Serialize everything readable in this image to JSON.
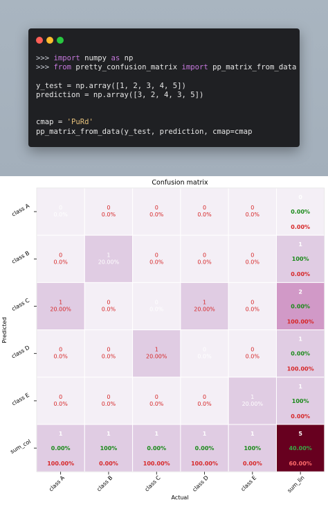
{
  "window": {
    "buttons": [
      "close",
      "minimize",
      "zoom"
    ]
  },
  "code_lines": [
    [
      {
        "t": ">>> ",
        "c": "prompt"
      },
      {
        "t": "import",
        "c": "kw"
      },
      {
        "t": " numpy ",
        "c": "plain"
      },
      {
        "t": "as",
        "c": "kw"
      },
      {
        "t": " np",
        "c": "plain"
      }
    ],
    [
      {
        "t": ">>> ",
        "c": "prompt"
      },
      {
        "t": "from",
        "c": "kw"
      },
      {
        "t": " pretty_confusion_matrix ",
        "c": "plain"
      },
      {
        "t": "import",
        "c": "kw"
      },
      {
        "t": " pp_matrix_from_data",
        "c": "plain"
      }
    ],
    [],
    [
      {
        "t": "y_test = np.array([1, 2, 3, 4, 5])",
        "c": "plain"
      }
    ],
    [
      {
        "t": "prediction = np.array([3, 2, 4, 3, 5])",
        "c": "plain"
      }
    ],
    [],
    [],
    [
      {
        "t": "cmap = ",
        "c": "plain"
      },
      {
        "t": "'PuRd'",
        "c": "str"
      }
    ],
    [
      {
        "t": "pp_matrix_from_data(y_test, prediction, cmap=cmap",
        "c": "plain"
      }
    ]
  ],
  "colors": {
    "count_text_dark": "#ffffff",
    "pct_text": "#d62728",
    "green_text": "#1a8a1a",
    "grid": "#ffffff"
  },
  "chart_data": {
    "type": "heatmap",
    "title": "Confusion matrix",
    "xlabel": "Actual",
    "ylabel": "Predicted",
    "columns": [
      "class A",
      "class B",
      "class C",
      "class D",
      "class E",
      "sum_lin"
    ],
    "rows": [
      "class A",
      "class B",
      "class C",
      "class D",
      "class E",
      "sum_col"
    ],
    "cells": [
      [
        {
          "count": "0",
          "pct": "0.0%",
          "fill": "#f4eff6",
          "style": "light"
        },
        {
          "count": "0",
          "pct": "0.0%",
          "fill": "#f4eff6",
          "style": "normal"
        },
        {
          "count": "0",
          "pct": "0.0%",
          "fill": "#f4eff6",
          "style": "normal"
        },
        {
          "count": "0",
          "pct": "0.0%",
          "fill": "#f4eff6",
          "style": "normal"
        },
        {
          "count": "0",
          "pct": "0.0%",
          "fill": "#f4eff6",
          "style": "normal"
        },
        {
          "count": "0",
          "green": "0.00%",
          "red": "0.00%",
          "fill": "#f4eff6",
          "style": "sum"
        }
      ],
      [
        {
          "count": "0",
          "pct": "0.0%",
          "fill": "#f4eff6",
          "style": "normal"
        },
        {
          "count": "1",
          "pct": "20.00%",
          "fill": "#e0cce3",
          "style": "light"
        },
        {
          "count": "0",
          "pct": "0.0%",
          "fill": "#f4eff6",
          "style": "normal"
        },
        {
          "count": "0",
          "pct": "0.0%",
          "fill": "#f4eff6",
          "style": "normal"
        },
        {
          "count": "0",
          "pct": "0.0%",
          "fill": "#f4eff6",
          "style": "normal"
        },
        {
          "count": "1",
          "green": "100%",
          "red": "0.00%",
          "fill": "#e0cce3",
          "style": "sum"
        }
      ],
      [
        {
          "count": "1",
          "pct": "20.00%",
          "fill": "#e0cce3",
          "style": "normal"
        },
        {
          "count": "0",
          "pct": "0.0%",
          "fill": "#f4eff6",
          "style": "normal"
        },
        {
          "count": "0",
          "pct": "0.0%",
          "fill": "#f4eff6",
          "style": "light"
        },
        {
          "count": "1",
          "pct": "20.00%",
          "fill": "#e0cce3",
          "style": "normal"
        },
        {
          "count": "0",
          "pct": "0.0%",
          "fill": "#f4eff6",
          "style": "normal"
        },
        {
          "count": "2",
          "green": "0.00%",
          "red": "100.00%",
          "fill": "#d199c7",
          "style": "sum"
        }
      ],
      [
        {
          "count": "0",
          "pct": "0.0%",
          "fill": "#f4eff6",
          "style": "normal"
        },
        {
          "count": "0",
          "pct": "0.0%",
          "fill": "#f4eff6",
          "style": "normal"
        },
        {
          "count": "1",
          "pct": "20.00%",
          "fill": "#e0cce3",
          "style": "normal"
        },
        {
          "count": "0",
          "pct": "0.0%",
          "fill": "#f4eff6",
          "style": "light"
        },
        {
          "count": "0",
          "pct": "0.0%",
          "fill": "#f4eff6",
          "style": "normal"
        },
        {
          "count": "1",
          "green": "0.00%",
          "red": "100.00%",
          "fill": "#e0cce3",
          "style": "sum"
        }
      ],
      [
        {
          "count": "0",
          "pct": "0.0%",
          "fill": "#f4eff6",
          "style": "normal"
        },
        {
          "count": "0",
          "pct": "0.0%",
          "fill": "#f4eff6",
          "style": "normal"
        },
        {
          "count": "0",
          "pct": "0.0%",
          "fill": "#f4eff6",
          "style": "normal"
        },
        {
          "count": "0",
          "pct": "0.0%",
          "fill": "#f4eff6",
          "style": "normal"
        },
        {
          "count": "1",
          "pct": "20.00%",
          "fill": "#e0cce3",
          "style": "light"
        },
        {
          "count": "1",
          "green": "100%",
          "red": "0.00%",
          "fill": "#e0cce3",
          "style": "sum"
        }
      ],
      [
        {
          "count": "1",
          "green": "0.00%",
          "red": "100.00%",
          "fill": "#e0cce3",
          "style": "sum"
        },
        {
          "count": "1",
          "green": "100%",
          "red": "0.00%",
          "fill": "#e0cce3",
          "style": "sum"
        },
        {
          "count": "1",
          "green": "0.00%",
          "red": "100.00%",
          "fill": "#e0cce3",
          "style": "sum"
        },
        {
          "count": "1",
          "green": "0.00%",
          "red": "100.00%",
          "fill": "#e0cce3",
          "style": "sum"
        },
        {
          "count": "1",
          "green": "100%",
          "red": "0.00%",
          "fill": "#e0cce3",
          "style": "sum"
        },
        {
          "count": "5",
          "green": "40.00%",
          "red": "60.00%",
          "fill": "#67001f",
          "style": "total"
        }
      ]
    ]
  }
}
